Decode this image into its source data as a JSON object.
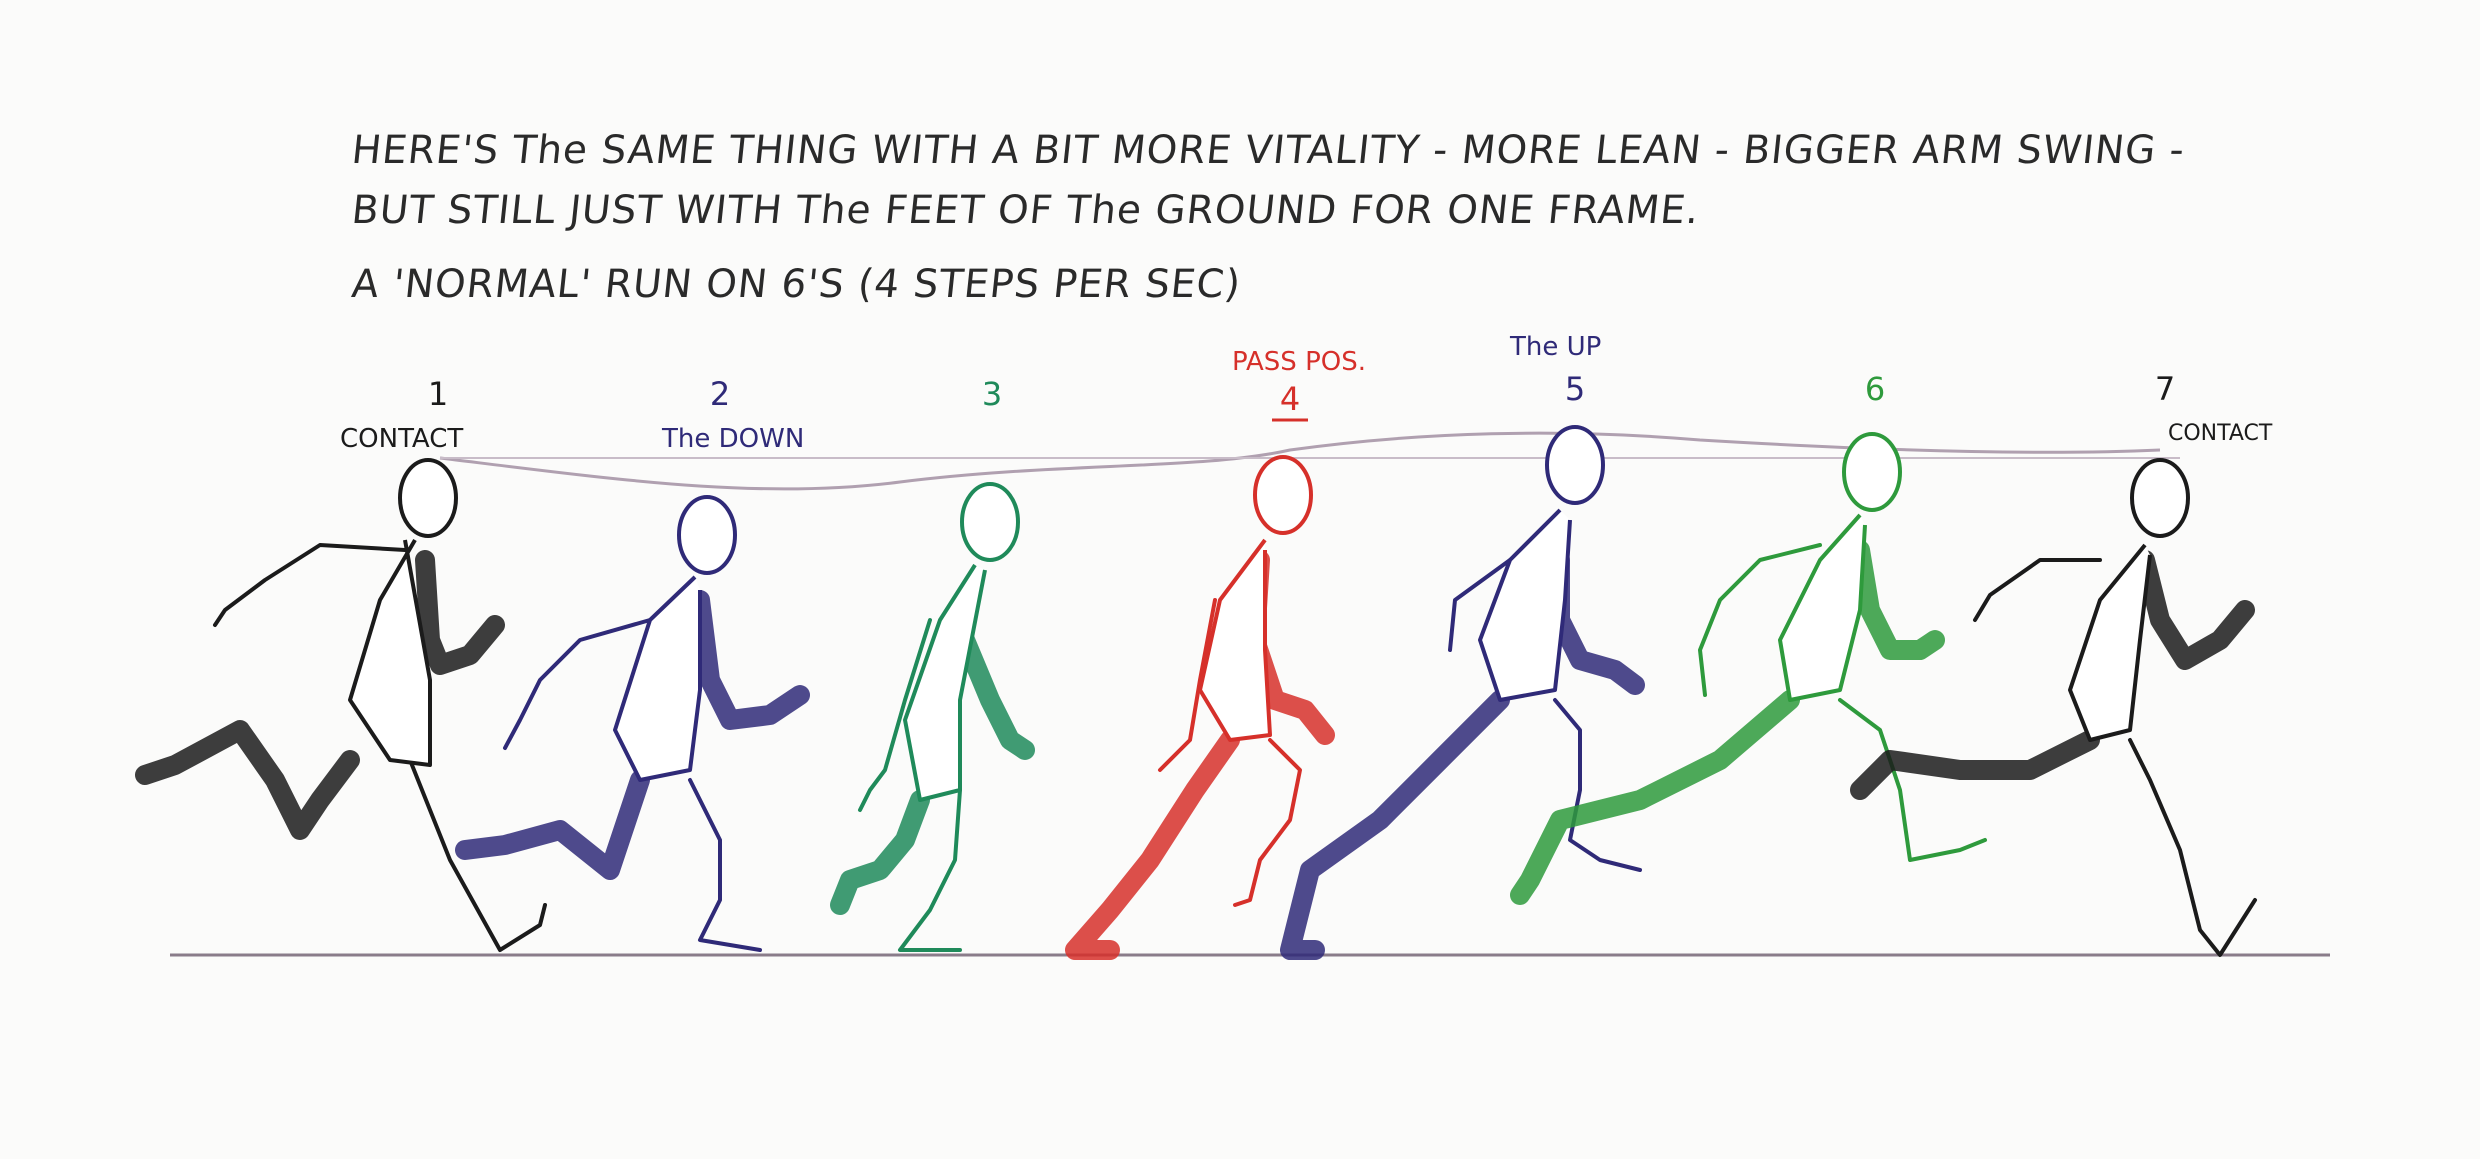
{
  "notes": {
    "line1": "HERE'S The SAME THING WITH A BIT MORE VITALITY - MORE LEAN - BIGGER ARM SWING -",
    "line2": "BUT STILL JUST WITH The FEET OF The GROUND FOR ONE FRAME.",
    "line3": "A 'NORMAL' RUN ON 6'S (4 STEPS PER SEC)"
  },
  "frames": [
    {
      "number": "1",
      "label": "CONTACT",
      "color": "#1b1b1b"
    },
    {
      "number": "2",
      "label": "The DOWN",
      "color": "#2f2a78"
    },
    {
      "number": "3",
      "label": "",
      "color": "#1f8a5a"
    },
    {
      "number": "4",
      "label": "PASS POS.",
      "color": "#d6302a"
    },
    {
      "number": "5",
      "label": "The UP",
      "color": "#2f2a78"
    },
    {
      "number": "6",
      "label": "",
      "color": "#2e9a3c"
    },
    {
      "number": "7",
      "label": "CONTACT",
      "color": "#1b1b1b"
    }
  ],
  "colors": {
    "ink": "#2a2a2a",
    "ground_line": "#8a7c8a",
    "head_path": "#b0a0b0"
  }
}
